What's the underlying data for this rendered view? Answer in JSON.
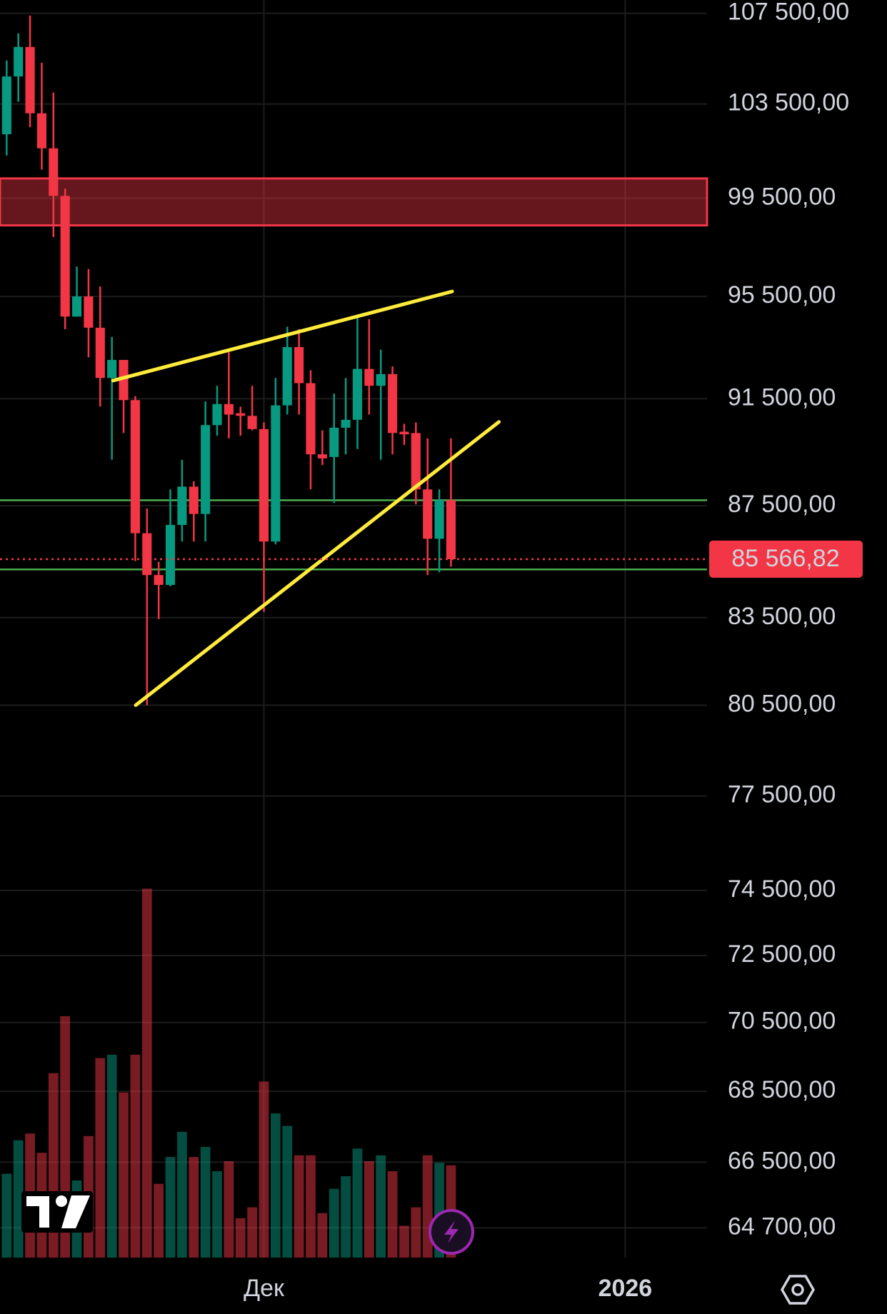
{
  "chart_data": {
    "type": "candlestick",
    "log_scale": true,
    "grid": true,
    "up_color": "#089981",
    "down_color": "#f23645",
    "ylim": [
      63900,
      108100
    ],
    "yticks": [
      {
        "value": 107500,
        "label": "107 500,00"
      },
      {
        "value": 103500,
        "label": "103 500,00"
      },
      {
        "value": 99500,
        "label": "99 500,00"
      },
      {
        "value": 95500,
        "label": "95 500,00"
      },
      {
        "value": 91500,
        "label": "91 500,00"
      },
      {
        "value": 87500,
        "label": "87 500,00"
      },
      {
        "value": 83500,
        "label": "83 500,00"
      },
      {
        "value": 80500,
        "label": "80 500,00"
      },
      {
        "value": 77500,
        "label": "77 500,00"
      },
      {
        "value": 74500,
        "label": "74 500,00"
      },
      {
        "value": 72500,
        "label": "72 500,00"
      },
      {
        "value": 70500,
        "label": "70 500,00"
      },
      {
        "value": 68500,
        "label": "68 500,00"
      },
      {
        "value": 66500,
        "label": "66 500,00"
      },
      {
        "value": 64700,
        "label": "64 700,00"
      }
    ],
    "xlim": [
      -0.57,
      59.9
    ],
    "xticks": [
      {
        "value": 22,
        "label": "Дек"
      },
      {
        "value": 52.9,
        "label": "2026"
      }
    ],
    "open": [
      102200,
      104700,
      106000,
      103100,
      101600,
      99600,
      94700,
      95500,
      94260,
      92300,
      93000,
      91450,
      86500,
      85000,
      84650,
      86800,
      88200,
      87200,
      90500,
      91300,
      90950,
      90850,
      90350,
      86200,
      91250,
      93500,
      92100,
      89400,
      89300,
      90400,
      90700,
      92650,
      92000,
      92450,
      90250,
      90200,
      88100,
      86300,
      87700
    ],
    "high": [
      105400,
      106600,
      107400,
      105300,
      104000,
      99900,
      96700,
      96600,
      95900,
      93900,
      93000,
      91600,
      87400,
      85470,
      88100,
      89200,
      88400,
      91400,
      92000,
      93300,
      91200,
      92000,
      90600,
      92300,
      94300,
      94200,
      92600,
      90300,
      91700,
      92300,
      94700,
      94600,
      93400,
      92750,
      90550,
      90600,
      90000,
      88100,
      90000
    ],
    "low": [
      101300,
      103600,
      102500,
      100700,
      97900,
      94200,
      94700,
      93100,
      91200,
      89200,
      90200,
      85500,
      80500,
      83450,
      84600,
      86200,
      86200,
      86200,
      90100,
      90000,
      90100,
      90300,
      83700,
      86100,
      90900,
      90900,
      88100,
      89000,
      87600,
      89400,
      89600,
      90900,
      89200,
      89400,
      89750,
      87550,
      85000,
      85100,
      85300
    ],
    "close": [
      104700,
      106000,
      103100,
      101600,
      99600,
      94700,
      95500,
      94260,
      92300,
      93000,
      91450,
      86500,
      85000,
      84650,
      86800,
      88200,
      87200,
      90500,
      91300,
      90900,
      90850,
      90350,
      86200,
      91250,
      93500,
      92100,
      89400,
      89250,
      90400,
      90700,
      92650,
      92000,
      92450,
      90200,
      90150,
      88100,
      86300,
      87700,
      85566.82
    ],
    "volume": [
      100,
      140,
      148,
      125,
      220,
      288,
      92,
      145,
      238,
      242,
      197,
      242,
      440,
      88,
      120,
      150,
      120,
      132,
      103,
      115,
      47,
      60,
      210,
      172,
      157,
      122,
      122,
      53,
      82,
      97,
      130,
      115,
      122,
      103,
      38,
      60,
      122,
      113,
      110
    ],
    "volume_lim": [
      0,
      1500
    ],
    "last_price": {
      "value": 85566.82,
      "label": "85 566,82"
    },
    "zone": {
      "y": [
        98380,
        100330
      ],
      "color": "#f23645"
    },
    "levels": {
      "values": [
        87700,
        85200
      ],
      "color": "#4caf50"
    },
    "trend_lines": {
      "color": "#ffeb3b",
      "lines": [
        {
          "x": [
            9.1,
            38.1
          ],
          "y": [
            92200,
            95700
          ]
        },
        {
          "x": [
            11.04,
            42.1
          ],
          "y": [
            80500,
            90620
          ]
        }
      ]
    }
  }
}
